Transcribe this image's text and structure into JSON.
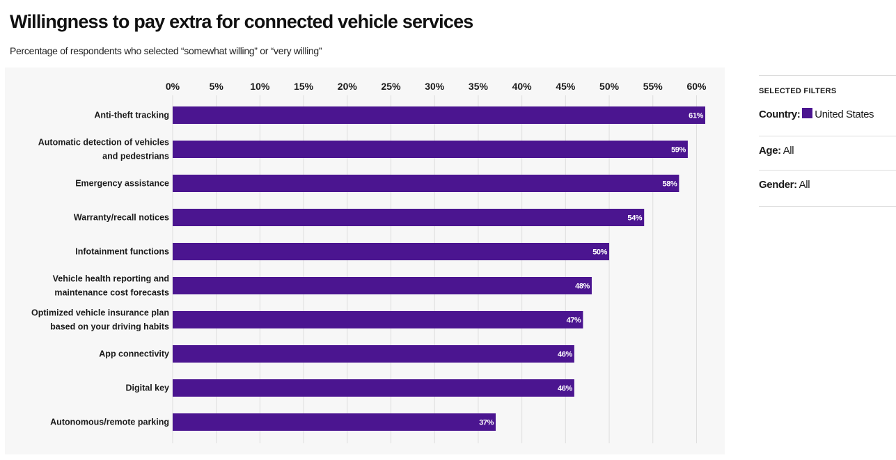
{
  "title": "Willingness to pay extra for connected vehicle services",
  "subtitle": "Percentage of respondents who selected “somewhat willing” or “very willing”",
  "filters": {
    "heading": "SELECTED FILTERS",
    "country": {
      "key": "Country:",
      "value": "United States"
    },
    "age": {
      "key": "Age:",
      "value": "All"
    },
    "gender": {
      "key": "Gender:",
      "value": "All"
    }
  },
  "colors": {
    "bar": "#4b1590",
    "panel": "#f7f7f7",
    "grid": "#dedede"
  },
  "chart_data": {
    "type": "bar",
    "orientation": "horizontal",
    "categories": [
      [
        "Anti-theft tracking"
      ],
      [
        "Automatic detection of vehicles",
        "and pedestrians"
      ],
      [
        "Emergency assistance"
      ],
      [
        "Warranty/recall notices"
      ],
      [
        "Infotainment functions"
      ],
      [
        "Vehicle health reporting and",
        "maintenance cost forecasts"
      ],
      [
        "Optimized vehicle insurance plan",
        "based on your driving habits"
      ],
      [
        "App connectivity"
      ],
      [
        "Digital key"
      ],
      [
        "Autonomous/remote parking"
      ]
    ],
    "values": [
      61,
      59,
      58,
      54,
      50,
      48,
      47,
      46,
      46,
      37
    ],
    "value_labels": [
      "61%",
      "59%",
      "58%",
      "54%",
      "50%",
      "48%",
      "47%",
      "46%",
      "46%",
      "37%"
    ],
    "x_ticks": [
      0,
      5,
      10,
      15,
      20,
      25,
      30,
      35,
      40,
      45,
      50,
      55,
      60
    ],
    "x_tick_labels": [
      "0%",
      "5%",
      "10%",
      "15%",
      "20%",
      "25%",
      "30%",
      "35%",
      "40%",
      "45%",
      "50%",
      "55%",
      "60%"
    ],
    "xlim": [
      0,
      61
    ],
    "xaxis_position": "top",
    "grid": true,
    "legend": false
  }
}
